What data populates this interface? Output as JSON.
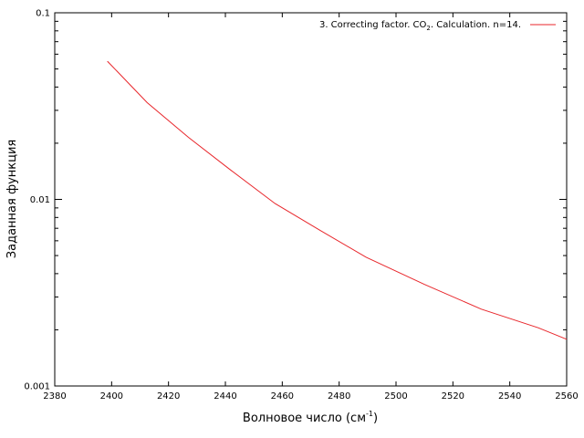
{
  "chart_data": {
    "type": "line",
    "xlabel": "Волновое число (см",
    "xlabel_sup": "-1",
    "xlabel_close": ")",
    "ylabel": "Заданная функция",
    "xlim": [
      2380,
      2560
    ],
    "ylim": [
      0.001,
      0.1
    ],
    "y_scale": "log",
    "x_ticks": [
      2380,
      2400,
      2420,
      2440,
      2460,
      2480,
      2500,
      2520,
      2540,
      2560
    ],
    "x_tick_labels": [
      "2380",
      "2400",
      "2420",
      "2440",
      "2460",
      "2480",
      "2500",
      "2520",
      "2540",
      "2560"
    ],
    "y_ticks": [
      0.001,
      0.01,
      0.1
    ],
    "y_tick_labels": [
      "0.001",
      "0.01",
      "0.1"
    ],
    "legend_position": "top-right",
    "series": [
      {
        "name_parts": [
          "3. Correcting factor. CO",
          "2",
          ". Calculation. n=14."
        ],
        "color": "#e8262b",
        "x": [
          2398.5,
          2412.5,
          2427,
          2442,
          2457.5,
          2473.5,
          2489.5,
          2510,
          2530,
          2550,
          2560
        ],
        "y": [
          0.055,
          0.033,
          0.0215,
          0.0143,
          0.0095,
          0.0068,
          0.0049,
          0.0035,
          0.00258,
          0.00205,
          0.00178
        ]
      }
    ]
  }
}
